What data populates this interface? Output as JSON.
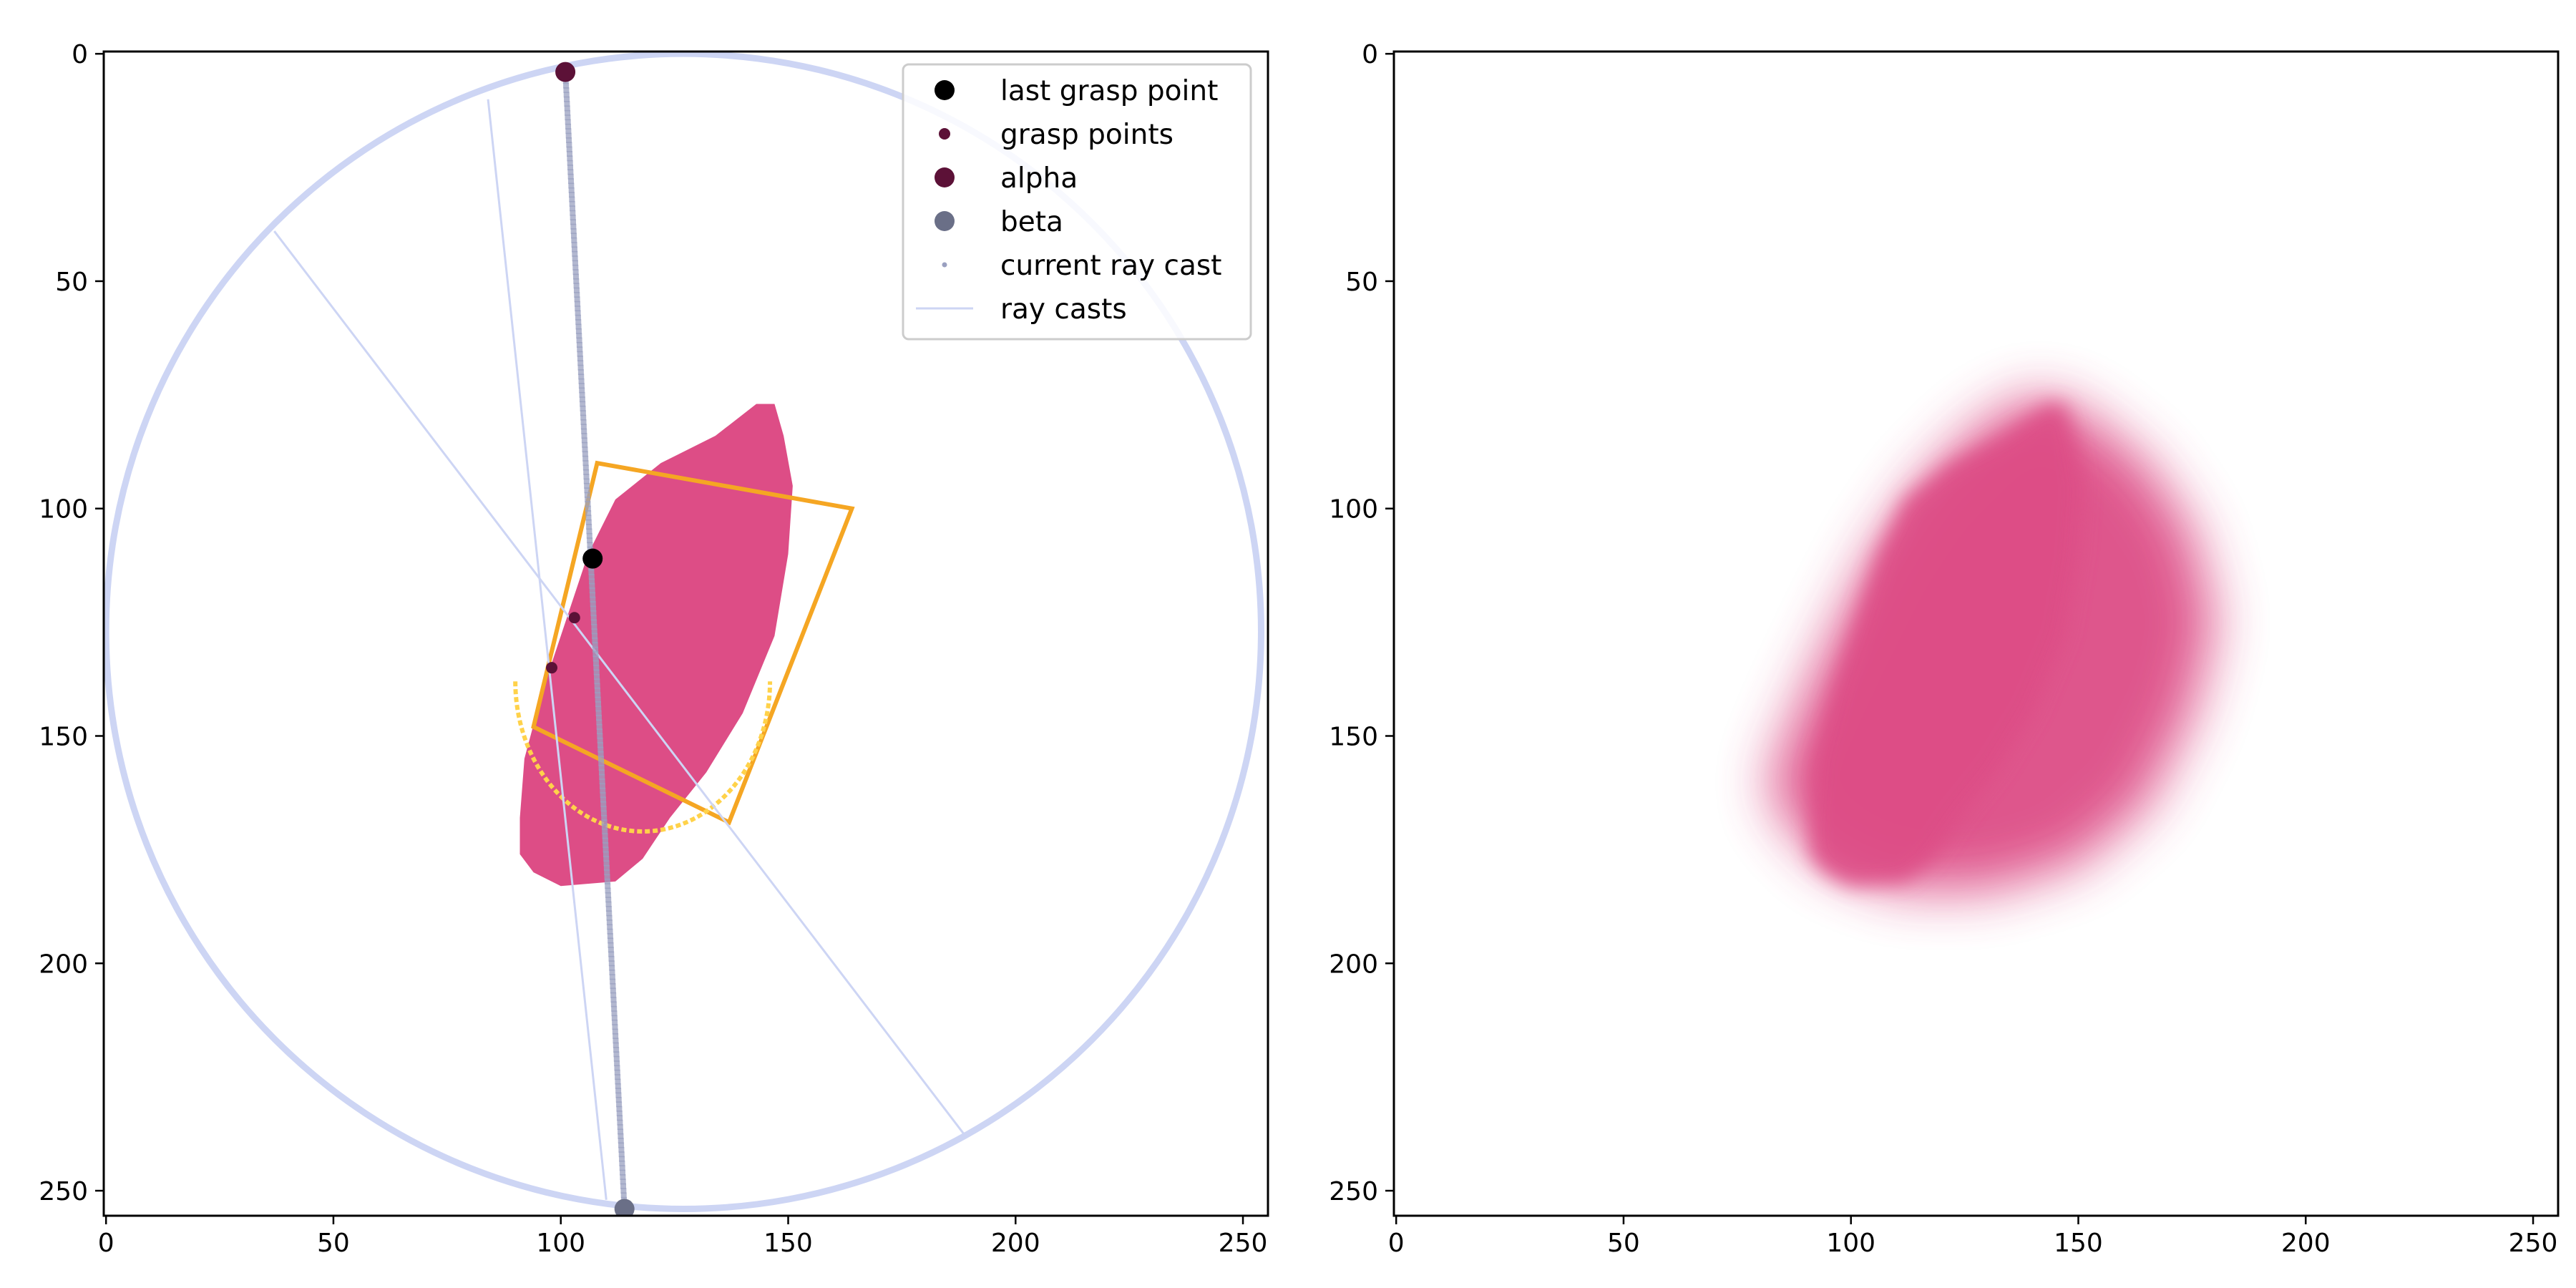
{
  "colors": {
    "shape": "#dd4d86",
    "rect": "#f5a623",
    "ellipse": "#ffd24a",
    "circle": "#cdd5f4",
    "ray": "#cdd5f4",
    "raycast_points": "#9aa0c0",
    "last_grasp": "#000000",
    "grasp_points": "#5c1137",
    "alpha": "#5c1137",
    "beta": "#6a6f87"
  },
  "chart_data": [
    {
      "type": "image",
      "xlim": [
        0,
        255
      ],
      "ylim": [
        255,
        0
      ],
      "xticks": [
        0,
        50,
        100,
        150,
        200,
        250
      ],
      "yticks": [
        0,
        50,
        100,
        150,
        200,
        250
      ],
      "shape_polygon": [
        [
          143,
          77
        ],
        [
          147,
          77
        ],
        [
          149,
          84
        ],
        [
          151,
          95
        ],
        [
          150,
          110
        ],
        [
          147,
          128
        ],
        [
          140,
          145
        ],
        [
          132,
          158
        ],
        [
          124,
          168
        ],
        [
          118,
          177
        ],
        [
          112,
          182
        ],
        [
          100,
          183
        ],
        [
          94,
          180
        ],
        [
          91,
          176
        ],
        [
          91,
          168
        ],
        [
          92,
          155
        ],
        [
          96,
          140
        ],
        [
          101,
          125
        ],
        [
          106,
          110
        ],
        [
          112,
          98
        ],
        [
          122,
          90
        ],
        [
          134,
          84
        ]
      ],
      "grasp_rect": [
        [
          108,
          90
        ],
        [
          164,
          100
        ],
        [
          137,
          169
        ],
        [
          94,
          148
        ]
      ],
      "inner_ellipse": {
        "cx": 118,
        "cy": 138,
        "rx": 28,
        "ry": 33
      },
      "circle": {
        "cx": 127,
        "cy": 127,
        "r": 127
      },
      "ray_casts": [
        [
          [
            84,
            10
          ],
          [
            110,
            252
          ]
        ],
        [
          [
            37,
            39
          ],
          [
            189,
            238
          ]
        ]
      ],
      "current_ray_cast": [
        [
          101,
          4
        ],
        [
          114,
          254
        ]
      ],
      "last_grasp_point": [
        107,
        111
      ],
      "grasp_points": [
        [
          98,
          135
        ],
        [
          103,
          124
        ]
      ],
      "alpha": [
        101,
        4
      ],
      "beta": [
        114,
        254
      ],
      "legend": {
        "position": "upper right",
        "entries": [
          {
            "label": "last grasp point",
            "marker": "dot-large",
            "color": "#000000"
          },
          {
            "label": "grasp points",
            "marker": "dot-small",
            "color": "#5c1137"
          },
          {
            "label": "alpha",
            "marker": "dot-large",
            "color": "#5c1137"
          },
          {
            "label": "beta",
            "marker": "dot-large",
            "color": "#6a6f87"
          },
          {
            "label": "current ray cast",
            "marker": "tiny-dot",
            "color": "#9aa0c0"
          },
          {
            "label": "ray casts",
            "marker": "line",
            "color": "#cdd5f4"
          }
        ]
      }
    },
    {
      "type": "image",
      "xlim": [
        0,
        255
      ],
      "ylim": [
        255,
        0
      ],
      "xticks": [
        0,
        50,
        100,
        150,
        200,
        250
      ],
      "yticks": [
        0,
        50,
        100,
        150,
        200,
        250
      ],
      "blurred_shape_polygon": [
        [
          140,
          75
        ],
        [
          150,
          78
        ],
        [
          165,
          90
        ],
        [
          175,
          105
        ],
        [
          180,
          125
        ],
        [
          175,
          145
        ],
        [
          165,
          165
        ],
        [
          150,
          178
        ],
        [
          130,
          184
        ],
        [
          110,
          184
        ],
        [
          95,
          178
        ],
        [
          85,
          168
        ],
        [
          82,
          160
        ],
        [
          88,
          145
        ],
        [
          95,
          130
        ],
        [
          105,
          110
        ],
        [
          115,
          95
        ],
        [
          128,
          82
        ]
      ]
    }
  ]
}
